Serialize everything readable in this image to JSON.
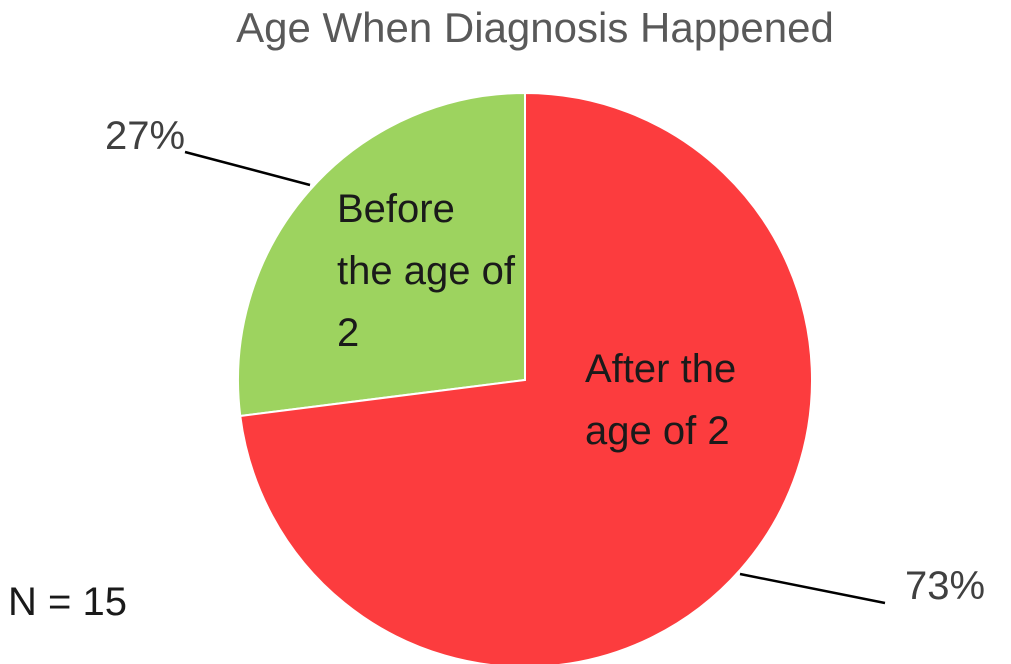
{
  "chart_data": {
    "type": "pie",
    "title": "Age When Diagnosis Happened",
    "categories": [
      "After the age of 2",
      "Before the age of 2"
    ],
    "values": [
      73,
      27
    ],
    "value_labels": [
      "73%",
      "27%"
    ],
    "colors": [
      "#fc3c3e",
      "#9dd35f"
    ],
    "annotation": "N = 15"
  }
}
